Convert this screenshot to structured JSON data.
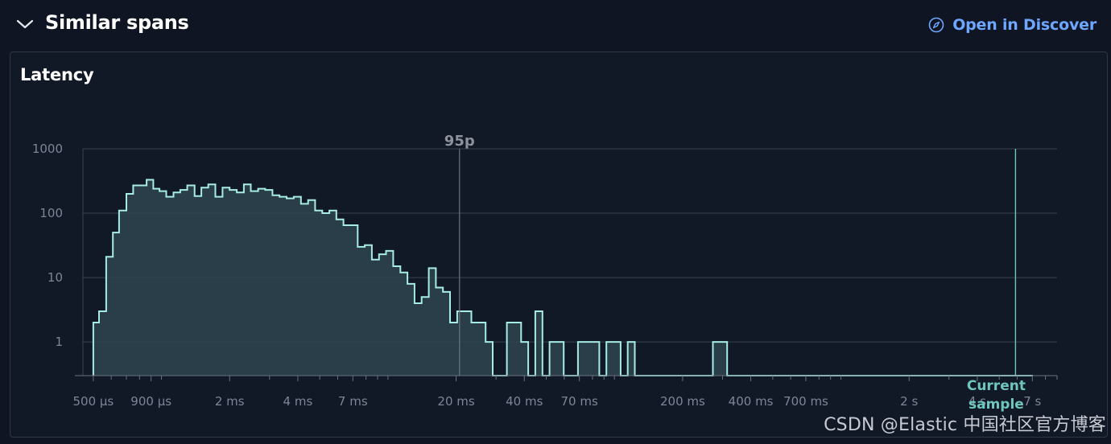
{
  "header": {
    "title": "Similar spans",
    "discover_link": "Open in Discover"
  },
  "panel": {
    "title": "Latency"
  },
  "watermark": "CSDN @Elastic 中国社区官方博客",
  "colors": {
    "background": "#0f1522",
    "accent_link": "#6fa6ff",
    "series_line": "#a6ece4",
    "series_fill": "#2f4550",
    "current_sample": "#6fc6bd",
    "grid": "#3a4354",
    "percentile_line": "#6d7380"
  },
  "icons": {
    "collapse": "chevron-down-icon",
    "discover": "compass-icon"
  },
  "chart_data": {
    "type": "area",
    "title": "",
    "xlabel": "",
    "ylabel": "",
    "x_scale": "log",
    "y_scale": "log",
    "xlim_ms": [
      0.45,
      9000
    ],
    "ylim": [
      0.3,
      1000
    ],
    "grid": true,
    "y_ticks": [
      {
        "value": 1,
        "label": "1"
      },
      {
        "value": 10,
        "label": "10"
      },
      {
        "value": 100,
        "label": "100"
      },
      {
        "value": 1000,
        "label": "1000"
      }
    ],
    "x_ticks": [
      {
        "value_ms": 0.5,
        "label": "500 µs"
      },
      {
        "value_ms": 0.9,
        "label": "900 µs"
      },
      {
        "value_ms": 2,
        "label": "2 ms"
      },
      {
        "value_ms": 4,
        "label": "4 ms"
      },
      {
        "value_ms": 7,
        "label": "7 ms"
      },
      {
        "value_ms": 20,
        "label": "20 ms"
      },
      {
        "value_ms": 40,
        "label": "40 ms"
      },
      {
        "value_ms": 70,
        "label": "70 ms"
      },
      {
        "value_ms": 200,
        "label": "200 ms"
      },
      {
        "value_ms": 400,
        "label": "400 ms"
      },
      {
        "value_ms": 700,
        "label": "700 ms"
      },
      {
        "value_ms": 2000,
        "label": "2 s"
      },
      {
        "value_ms": 4000,
        "label": "4 s"
      },
      {
        "value_ms": 7000,
        "label": "7 s"
      }
    ],
    "x_minor_ticks_ms": [
      0.6,
      0.7,
      0.8,
      1,
      3,
      5,
      6,
      8,
      9,
      10,
      30,
      50,
      60,
      80,
      90,
      100,
      300,
      500,
      600,
      800,
      900,
      1000,
      3000,
      5000,
      6000,
      8000,
      9000
    ],
    "series": [
      {
        "bin_edges_ms": [
          0.5,
          0.53,
          0.57,
          0.61,
          0.65,
          0.7,
          0.75,
          0.8,
          0.86,
          0.92,
          0.98,
          1.05,
          1.13,
          1.21,
          1.3,
          1.4,
          1.5,
          1.61,
          1.73,
          1.86,
          2.0,
          2.15,
          2.31,
          2.48,
          2.67,
          2.87,
          3.09,
          3.32,
          3.57,
          3.84,
          4.13,
          4.44,
          4.77,
          5.13,
          5.51,
          5.92,
          6.36,
          6.84,
          7.35,
          7.9,
          8.49,
          9.13,
          9.81,
          10.55,
          11.34,
          12.19,
          13.1,
          14.08,
          15.14,
          16.27,
          17.49,
          18.8,
          20.21,
          21.72,
          23.35,
          25.1,
          26.98,
          29.0,
          31.17,
          33.51,
          36.02,
          38.72,
          41.62,
          44.73,
          48.09,
          51.69,
          55.56,
          59.72,
          64.2,
          69.0,
          74.18,
          79.73,
          85.71,
          92.13,
          99.03,
          106.46,
          114.43,
          123.0,
          132.2,
          142.0,
          152.7,
          164.1,
          176.4,
          189.6,
          203.8,
          219.1,
          235.5,
          253.2,
          272.1,
          292.5,
          314.5,
          338.0,
          363.4,
          390.6,
          419.9,
          451.3,
          485.2,
          521.5,
          560.6,
          602.6,
          647.7,
          696.3,
          748.5,
          804.6,
          864.9,
          929.7,
          999.4,
          1074.3,
          1154.8,
          1241.4,
          1334.4,
          1434.4,
          1541.9,
          1657.5,
          1781.7,
          1915.3,
          2058.8,
          2213.1,
          2379.0,
          2557.3,
          2749.0,
          2955.0,
          3176.5,
          3414.5,
          3670.5,
          3945.6,
          4241.3,
          4559.2,
          4900.9,
          5268.2,
          5663.0,
          6087.5,
          6543.7,
          7034.2
        ],
        "counts": [
          2,
          3,
          21,
          50,
          110,
          200,
          270,
          270,
          330,
          240,
          220,
          180,
          210,
          230,
          270,
          185,
          250,
          280,
          180,
          250,
          230,
          210,
          280,
          220,
          240,
          230,
          190,
          180,
          170,
          180,
          140,
          160,
          110,
          100,
          110,
          80,
          65,
          65,
          30,
          32,
          19,
          23,
          26,
          15,
          12,
          8,
          4,
          5,
          14,
          7,
          6,
          2,
          3,
          3,
          2,
          2,
          1,
          0,
          0,
          2,
          2,
          1,
          0,
          3,
          0,
          1,
          1,
          0,
          0,
          1,
          1,
          1,
          0,
          1,
          1,
          0,
          1,
          0,
          0,
          0,
          0,
          0,
          0,
          0,
          0,
          0,
          0,
          0,
          1,
          1,
          0,
          0,
          0,
          0,
          0,
          0,
          0,
          0,
          0,
          0,
          0,
          0,
          0,
          0,
          0,
          0,
          0,
          0,
          0,
          0,
          0,
          0,
          0,
          0,
          0,
          0,
          0,
          0,
          0,
          0,
          0,
          0,
          0,
          0,
          0,
          0,
          0,
          0,
          0,
          0
        ]
      }
    ],
    "annotations": [
      {
        "label": "95p",
        "x_ms": 20.7
      },
      {
        "label": "Current sample",
        "x_ms": 5900
      }
    ]
  }
}
